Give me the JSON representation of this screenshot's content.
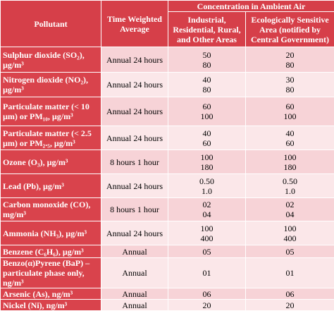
{
  "header": {
    "pollutant": "Pollutant",
    "time": "Time Weighted Average",
    "concentration": "Concentration in Ambient Air",
    "industrial": "Industrial, Residential, Rural, and Other Areas",
    "ecological": "Ecologically Sensitive Area (notified by Central Government)"
  },
  "rows": [
    {
      "pollutant": "Sulphur dioxide (SO₂), µg/m³",
      "time": "Annual 24 hours",
      "industrial": [
        "50",
        "80"
      ],
      "ecological": [
        "20",
        "80"
      ]
    },
    {
      "pollutant": "Nitrogen dioxide (NO₂), µg/m³",
      "time": "Annual 24 hours",
      "industrial": [
        "40",
        "80"
      ],
      "ecological": [
        "30",
        "80"
      ]
    },
    {
      "pollutant": "Particulate matter (< 10 µm) or PM₁₀, µg/m³",
      "time": "Annual 24 hours",
      "industrial": [
        "60",
        "100"
      ],
      "ecological": [
        "60",
        "100"
      ]
    },
    {
      "pollutant": "Particulate matter (< 2.5 µm) or PM₂.₅, µg/m³",
      "time": "Annual 24 hours",
      "industrial": [
        "40",
        "60"
      ],
      "ecological": [
        "40",
        "60"
      ]
    },
    {
      "pollutant": "Ozone (O₃), µg/m³",
      "time": "8 hours 1 hour",
      "industrial": [
        "100",
        "180"
      ],
      "ecological": [
        "100",
        "180"
      ]
    },
    {
      "pollutant": "Lead (Pb), µg/m³",
      "time": "Annual 24 hours",
      "industrial": [
        "0.50",
        "1.0"
      ],
      "ecological": [
        "0.50",
        "1.0"
      ]
    },
    {
      "pollutant": "Carbon monoxide (CO), mg/m³",
      "time": "8 hours 1 hour",
      "industrial": [
        "02",
        "04"
      ],
      "ecological": [
        "02",
        "04"
      ]
    },
    {
      "pollutant": "Ammonia (NH₃), µg/m³",
      "time": "Annual 24 hours",
      "industrial": [
        "100",
        "400"
      ],
      "ecological": [
        "100",
        "400"
      ]
    },
    {
      "pollutant": "Benzene (C₆H₆), µg/m³",
      "time": "Annual",
      "industrial": [
        "05"
      ],
      "ecological": [
        "05"
      ]
    },
    {
      "pollutant": "Benzo(α)Pyrene (BaP) – particulate phase only, ng/m³",
      "time": "Annual",
      "industrial": [
        "01"
      ],
      "ecological": [
        "01"
      ]
    },
    {
      "pollutant": "Arsenic (As), ng/m³",
      "time": "Annual",
      "industrial": [
        "06"
      ],
      "ecological": [
        "06"
      ]
    },
    {
      "pollutant": "Nickel (Ni), ng/m³",
      "time": "Annual",
      "industrial": [
        "20"
      ],
      "ecological": [
        "20"
      ]
    }
  ]
}
